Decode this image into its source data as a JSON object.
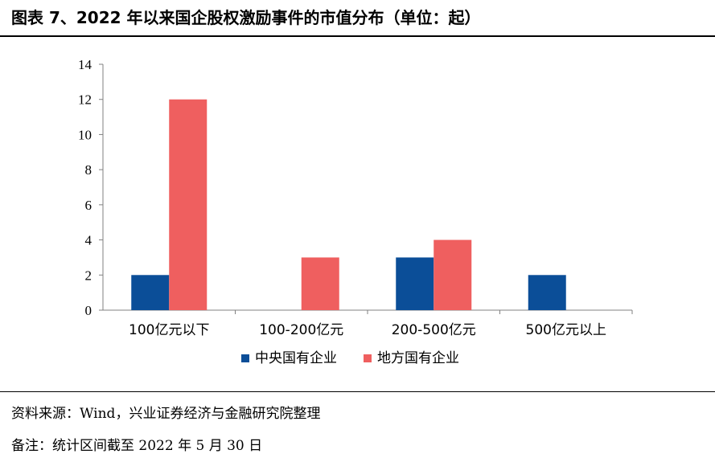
{
  "header": {
    "title": "图表 7、2022 年以来国企股权激励事件的市值分布（单位：起）"
  },
  "chart_data": {
    "type": "bar",
    "categories": [
      "100亿元以下",
      "100-200亿元",
      "200-500亿元",
      "500亿元以上"
    ],
    "series": [
      {
        "name": "中央国有企业",
        "values": [
          2,
          0,
          3,
          2
        ],
        "color": "#0b4e98"
      },
      {
        "name": "地方国有企业",
        "values": [
          12,
          3,
          4,
          0
        ],
        "color": "#ef5f5f"
      }
    ],
    "ylim": [
      0,
      14
    ],
    "yticks": [
      0,
      2,
      4,
      6,
      8,
      10,
      12,
      14
    ],
    "grid": false,
    "legend": "bottom-center"
  },
  "footer": {
    "source": "资料来源：Wind，兴业证券经济与金融研究院整理",
    "note": "备注：统计区间截至 2022 年 5 月 30 日"
  }
}
